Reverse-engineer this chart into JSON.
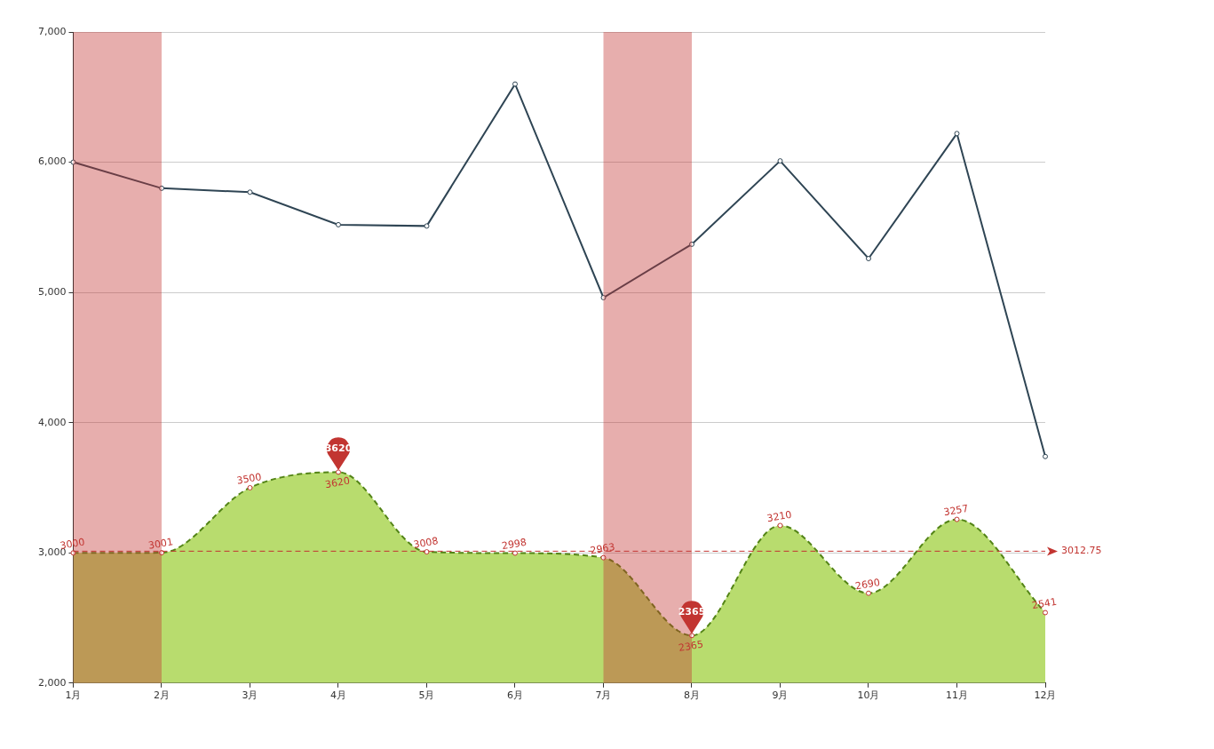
{
  "chart_data": {
    "type": "line",
    "categories": [
      "1月",
      "2月",
      "3月",
      "4月",
      "5月",
      "6月",
      "7月",
      "8月",
      "9月",
      "10月",
      "11月",
      "12月"
    ],
    "series": [
      {
        "type": "line",
        "color": "#2f4554",
        "marker": "circle",
        "line_style": "solid",
        "values": [
          6000,
          5800,
          5770,
          5520,
          5510,
          6600,
          4960,
          5370,
          6010,
          5260,
          6220,
          3740
        ]
      },
      {
        "type": "area",
        "color": "#b8dc6e",
        "marker": "circle",
        "line_style": "dashed",
        "values": [
          3000,
          3001,
          3500,
          3620,
          3008,
          2998,
          2963,
          2365,
          3210,
          2690,
          3257,
          2541
        ],
        "value_labels": [
          "3000",
          "3001",
          "3500",
          "3620",
          "3008",
          "2998",
          "2963",
          "2365",
          "3210",
          "2690",
          "3257",
          "2541"
        ]
      }
    ],
    "ylim": [
      2000,
      7000
    ],
    "yticks": [
      {
        "value": 2000,
        "label": "2,000"
      },
      {
        "value": 3000,
        "label": "3,000"
      },
      {
        "value": 4000,
        "label": "4,000"
      },
      {
        "value": 5000,
        "label": "5,000"
      },
      {
        "value": 6000,
        "label": "6,000"
      },
      {
        "value": 7000,
        "label": "7,000"
      }
    ],
    "grid": "y",
    "legend": false,
    "ref_lines": [
      {
        "axis": "y",
        "value": 3012.75,
        "label": "3012.75",
        "color": "#c23531",
        "line_style": "dashed"
      }
    ],
    "bands": [
      {
        "axis": "x",
        "from": "1月",
        "to": "2月",
        "color": "#c23531"
      },
      {
        "axis": "x",
        "from": "7月",
        "to": "8月",
        "color": "#c23531"
      }
    ],
    "annotations": [
      {
        "text": "3620",
        "x": "4月",
        "y": 3620
      },
      {
        "text": "2365",
        "x": "8月",
        "y": 2365
      }
    ]
  }
}
